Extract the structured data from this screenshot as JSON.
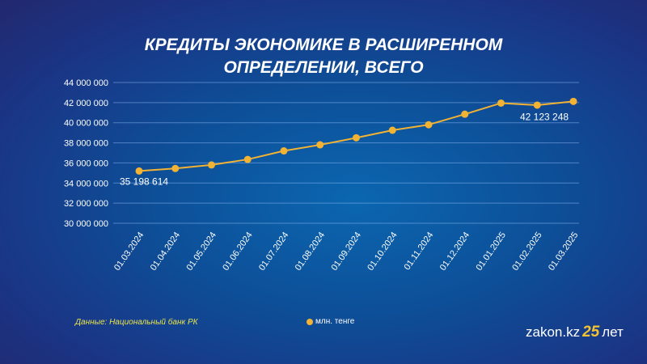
{
  "chart_data": {
    "type": "line",
    "title": "КРЕДИТЫ ЭКОНОМИКЕ В РАСШИРЕННОМ ОПРЕДЕЛЕНИИ, ВСЕГО",
    "title_line1": "КРЕДИТЫ ЭКОНОМИКЕ В РАСШИРЕННОМ",
    "title_line2": "ОПРЕДЕЛЕНИИ, ВСЕГО",
    "categories": [
      "01.03.2024",
      "01.04.2024",
      "01.05.2024",
      "01.06.2024",
      "01.07.2024",
      "01.08.2024",
      "01.09.2024",
      "01.10.2024",
      "01.11.2024",
      "01.12.2024",
      "01.01.2025",
      "01.02.2025",
      "01.03.2025"
    ],
    "series": [
      {
        "name": "млн. тенге",
        "color": "#f2b233",
        "values": [
          35198614,
          35450000,
          35800000,
          36350000,
          37200000,
          37800000,
          38500000,
          39250000,
          39800000,
          40850000,
          41950000,
          41750000,
          42123248
        ]
      }
    ],
    "data_labels": [
      "35 198 614",
      "42 123 248"
    ],
    "ylim": [
      30000000,
      44000000
    ],
    "yticks": [
      "30 000 000",
      "32 000 000",
      "34 000 000",
      "36 000 000",
      "38 000 000",
      "40 000 000",
      "42 000 000",
      "44 000 000"
    ],
    "legend": "млн. тенге",
    "legend_position": "bottom-center",
    "grid": true
  },
  "source": "Данные: Национальный банк РК",
  "logo": {
    "text": "zakon.kz",
    "badge": "25",
    "suffix": "лет"
  }
}
